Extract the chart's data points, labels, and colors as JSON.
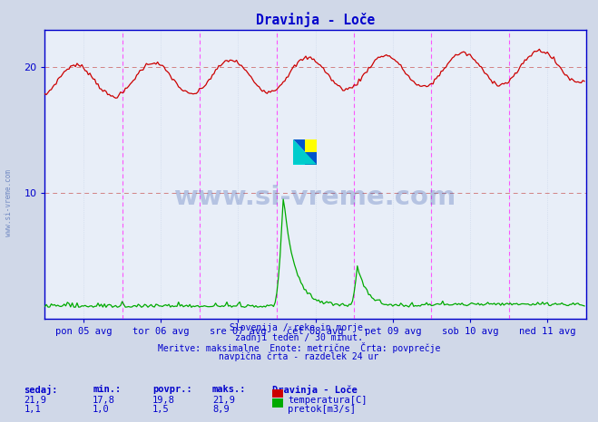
{
  "title": "Dravinja - Loče",
  "title_color": "#0000cc",
  "bg_color": "#d0d8e8",
  "plot_bg_color": "#e8eef8",
  "fig_width": 6.59,
  "fig_height": 4.66,
  "dpi": 100,
  "xlim": [
    0,
    336
  ],
  "ylim": [
    0,
    23
  ],
  "yticks": [
    10,
    20
  ],
  "x_tick_labels": [
    "pon 05 avg",
    "tor 06 avg",
    "sre 07 avg",
    "čet 08 avg",
    "pet 09 avg",
    "sob 10 avg",
    "ned 11 avg"
  ],
  "x_tick_positions": [
    24,
    72,
    120,
    168,
    216,
    264,
    312
  ],
  "vline_positions": [
    48,
    96,
    144,
    192,
    240,
    288,
    336
  ],
  "hline_positions": [
    10,
    20
  ],
  "temp_color": "#cc0000",
  "flow_color": "#00aa00",
  "flow_dot_color": "#00cc00",
  "watermark_color": "#3355aa",
  "grid_color_v": "#c8d4e8",
  "grid_color_h": "#d4c0c0",
  "vline_color": "#ff44ff",
  "hline_color": "#cc6666",
  "subtitle_lines": [
    "Slovenija / reke in morje.",
    "zadnji teden / 30 minut.",
    "Meritve: maksimalne  Enote: metrične  Črta: povprečje",
    "navpična črta - razdelek 24 ur"
  ],
  "legend_headers": [
    "sedaj:",
    "min.:",
    "povpr.:",
    "maks.:",
    "Dravinja - Loče"
  ],
  "legend_temp": [
    "21,9",
    "17,8",
    "19,8",
    "21,9",
    "temperatura[C]"
  ],
  "legend_flow": [
    "1,1",
    "1,0",
    "1,5",
    "8,9",
    "pretok[m3/s]"
  ],
  "temp_color_box": "#cc0000",
  "flow_color_box": "#00aa00",
  "n_points": 336,
  "axis_color": "#0000cc",
  "tick_color": "#0000cc",
  "text_color": "#0000cc",
  "border_color": "#0000cc"
}
